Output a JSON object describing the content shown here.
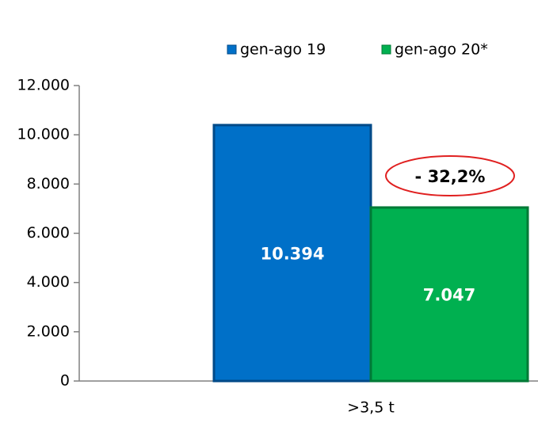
{
  "chart_data": {
    "type": "bar",
    "categories": [
      ">3,5 t"
    ],
    "series": [
      {
        "name": "gen-ago 19",
        "color": "#0070c8",
        "values": [
          10394
        ],
        "value_labels": [
          "10.394"
        ]
      },
      {
        "name": "gen-ago 20*",
        "color": "#00b050",
        "values": [
          7047
        ],
        "value_labels": [
          "7.047"
        ]
      }
    ],
    "ylim": [
      0,
      12000
    ],
    "yticks": [
      0,
      {
        "value": 2000,
        "label": "2.000"
      },
      {
        "value": 4000,
        "label": "4.000"
      },
      {
        "value": 6000,
        "label": "6.000"
      },
      {
        "value": 8000,
        "label": "8.000"
      },
      {
        "value": 10000,
        "label": "10.000"
      },
      {
        "value": 12000,
        "label": "12.000"
      }
    ],
    "annotations": [
      "- 32,2%"
    ],
    "legend": "top-right"
  }
}
